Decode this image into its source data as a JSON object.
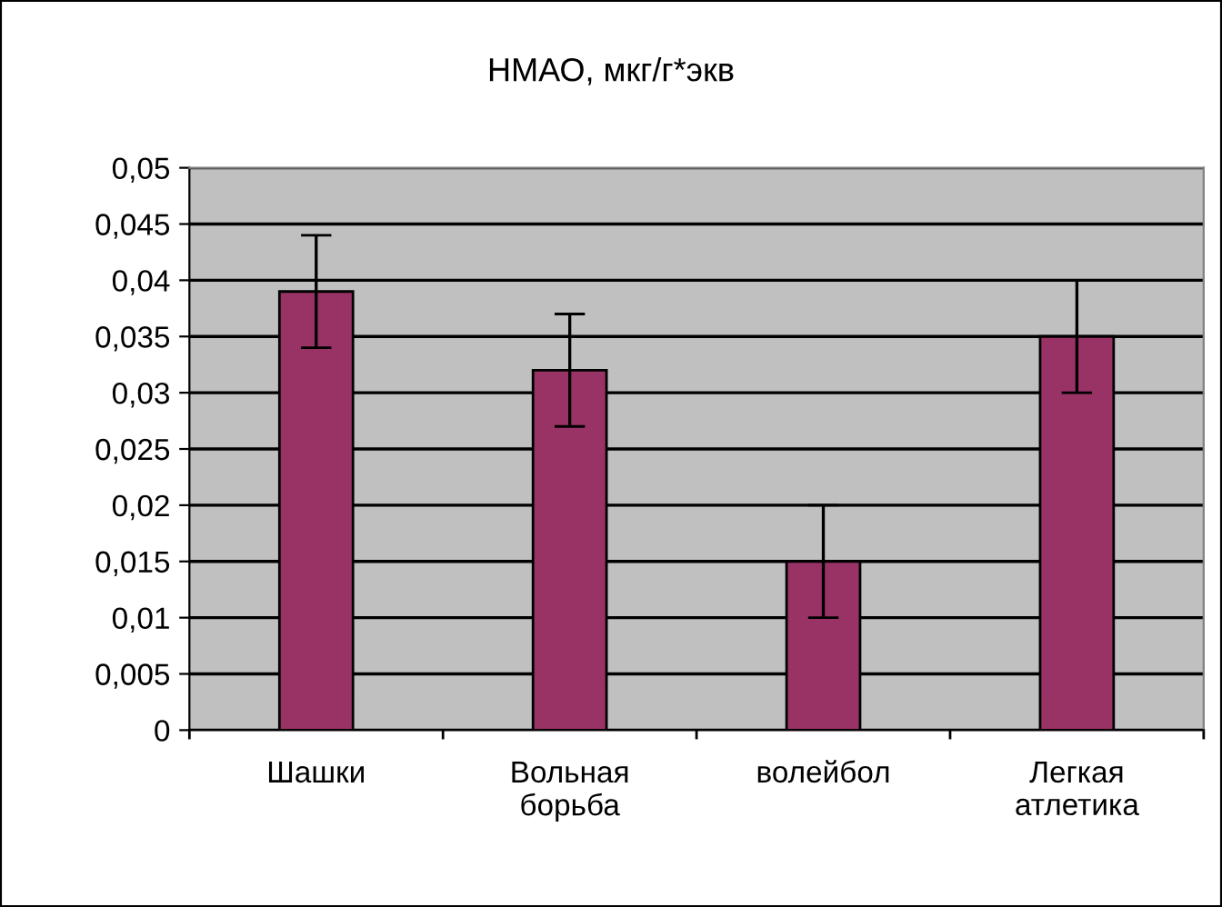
{
  "chart_data": {
    "type": "bar",
    "title": "НМАО, мкг/г*экв",
    "categories": [
      "Шашки",
      "Вольная\nборьба",
      "волейбол",
      "Легкая\nатлетика"
    ],
    "values": [
      0.039,
      0.032,
      0.015,
      0.035
    ],
    "errors": [
      0.005,
      0.005,
      0.005,
      0.005
    ],
    "color": "#993366",
    "ylim": [
      0,
      0.05
    ],
    "yticks": [
      0,
      {
        "value": 0.005,
        "label": "0,005"
      },
      {
        "value": 0.01,
        "label": "0,01"
      },
      {
        "value": 0.015,
        "label": "0,015"
      },
      {
        "value": 0.02,
        "label": "0,02"
      },
      {
        "value": 0.025,
        "label": "0,025"
      },
      {
        "value": 0.03,
        "label": "0,03"
      },
      {
        "value": 0.035,
        "label": "0,035"
      },
      {
        "value": 0.04,
        "label": "0,04"
      },
      {
        "value": 0.045,
        "label": "0,045"
      },
      {
        "value": 0.05,
        "label": "0,05"
      }
    ],
    "grid": "y"
  }
}
